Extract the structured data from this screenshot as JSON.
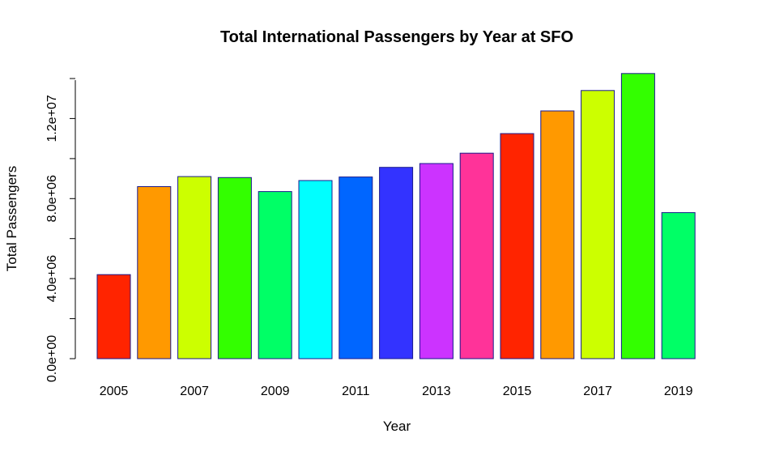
{
  "chart_data": {
    "type": "bar",
    "title": "Total International Passengers by Year at SFO",
    "xlabel": "Year",
    "ylabel": "Total Passengers",
    "ylim": [
      0,
      14000000
    ],
    "yticks": [
      0,
      4000000,
      8000000,
      12000000
    ],
    "ytick_labels": [
      "0.0e+00",
      "4.0e+06",
      "8.0e+06",
      "1.2e+07"
    ],
    "categories": [
      "2005",
      "2006",
      "2007",
      "2008",
      "2009",
      "2010",
      "2011",
      "2012",
      "2013",
      "2014",
      "2015",
      "2016",
      "2017",
      "2018",
      "2019"
    ],
    "xtick_labels": [
      "2005",
      "2007",
      "2009",
      "2011",
      "2013",
      "2015",
      "2017",
      "2019"
    ],
    "values": [
      4200000,
      8600000,
      9100000,
      9050000,
      8350000,
      8900000,
      9080000,
      9560000,
      9750000,
      10270000,
      11250000,
      12380000,
      13400000,
      14250000,
      7300000
    ],
    "colors": [
      "#FF2400",
      "#FF9900",
      "#CCFF00",
      "#33FF00",
      "#00FF66",
      "#00FFFF",
      "#0066FF",
      "#3333FF",
      "#CC33FF",
      "#FF3399",
      "#FF2400",
      "#FF9900",
      "#CCFF00",
      "#33FF00",
      "#00FF66"
    ],
    "grid": false,
    "legend": "none"
  }
}
